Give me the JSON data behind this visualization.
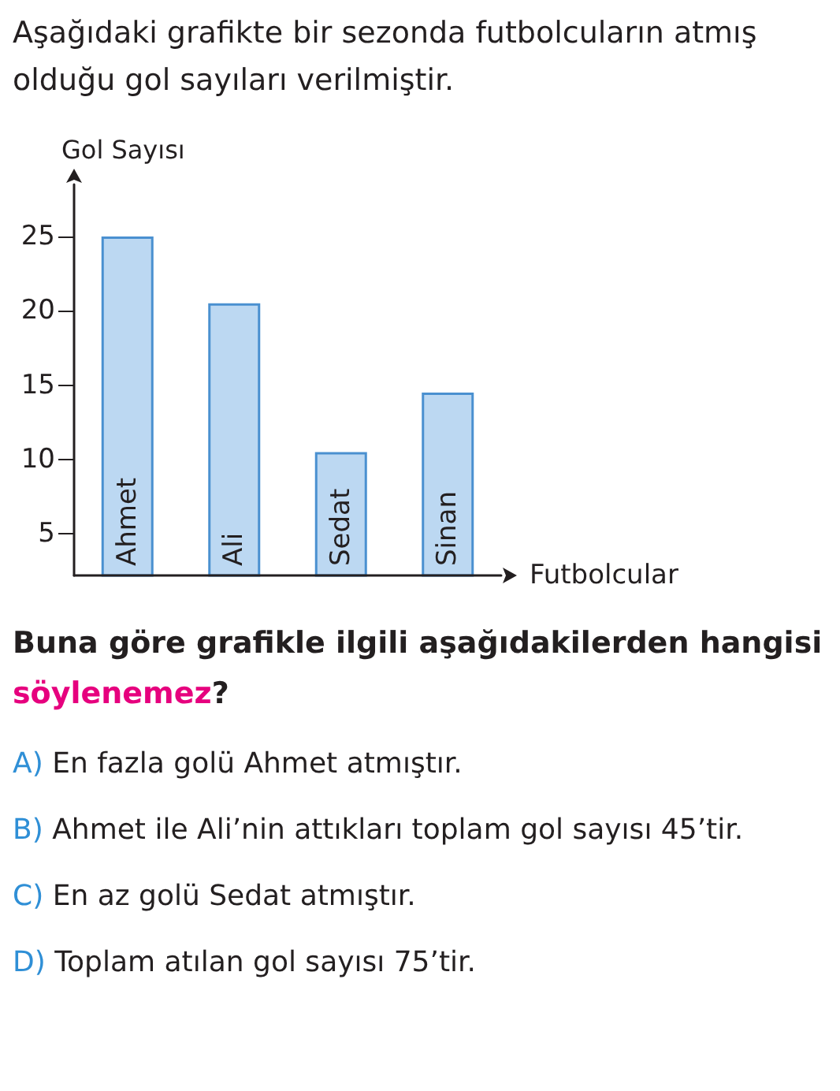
{
  "chart_data": {
    "type": "bar",
    "title": "Aşağıdaki grafikte bir sezonda futbolcuların atmış olduğu gol sayıları verilmiştir.",
    "xlabel": "Futbolcular",
    "ylabel": "Gol Sayısı",
    "categories": [
      "Ahmet",
      "Ali",
      "Sedat",
      "Sinan"
    ],
    "values": [
      25,
      20.5,
      10.5,
      14.5
    ],
    "color": "#bcd8f2",
    "ylim": [
      2.2,
      28.5
    ],
    "yticks": [
      5,
      10,
      15,
      20,
      25
    ],
    "annotations": [
      "Buna göre grafikle ilgili aşağıdakilerden hangisi söylenemez?",
      "A) En fazla golü Ahmet atmıştır.",
      "B) Ahmet ile Ali’nin attıkları toplam gol sayısı 45’tir.",
      "C) En az golü Sedat atmıştır.",
      "D) Toplam atılan gol sayısı 75’tir."
    ]
  }
}
